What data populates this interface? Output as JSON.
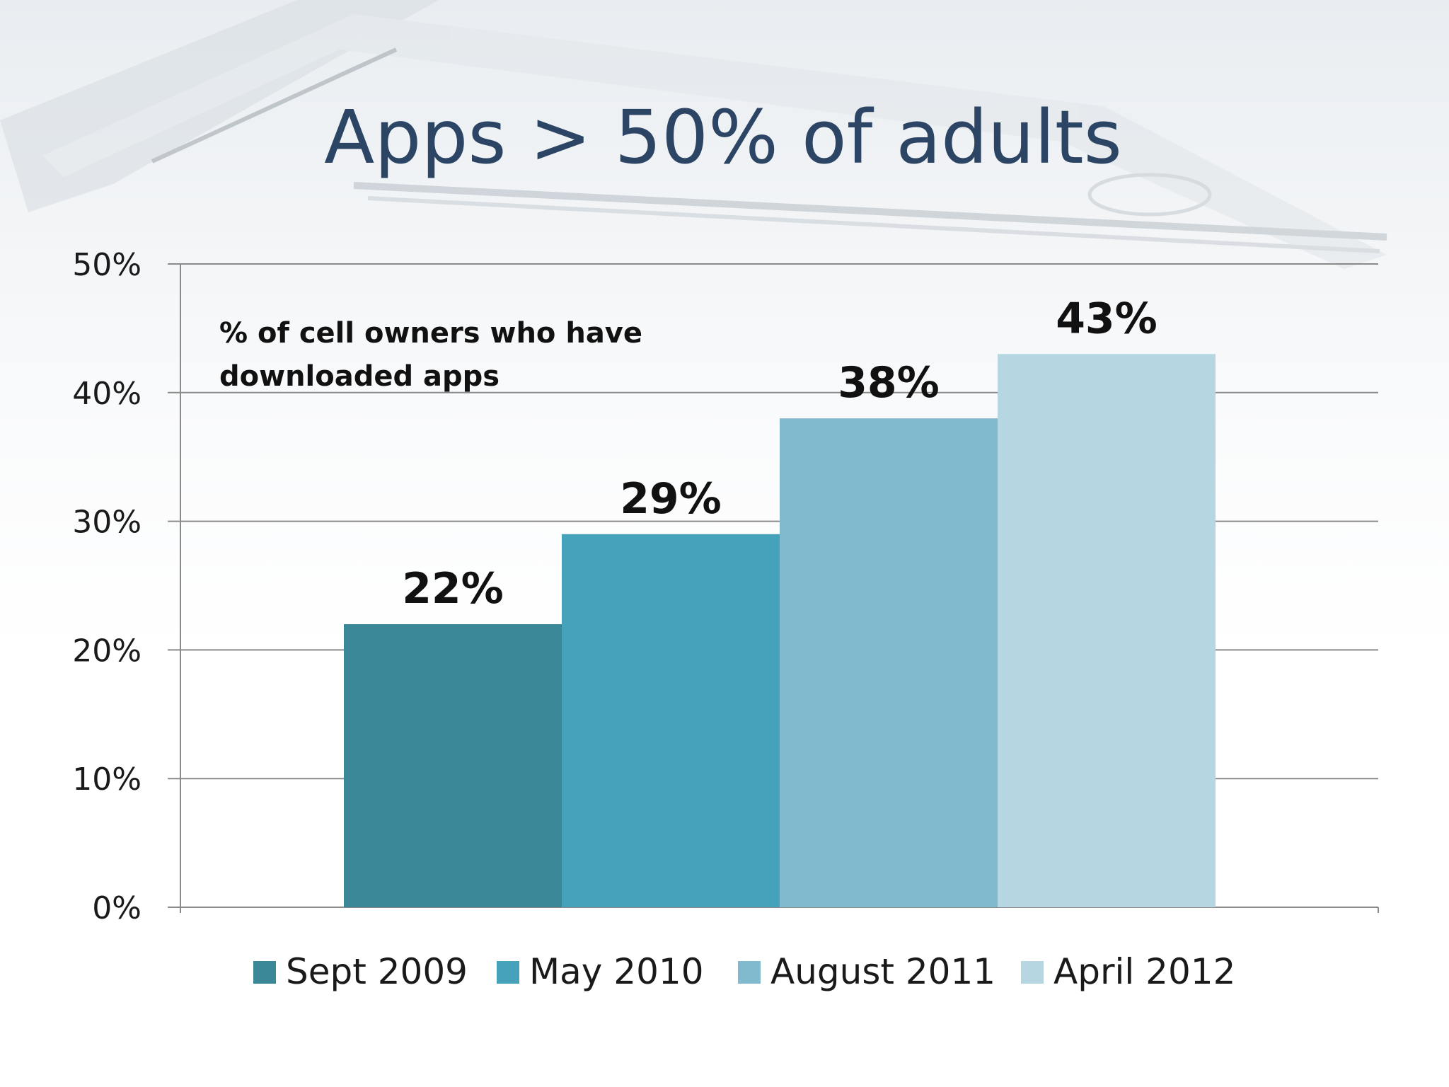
{
  "chart_data": {
    "type": "bar",
    "title": "Apps > 50% of adults",
    "annotation": [
      "% of cell owners who have",
      "downloaded apps"
    ],
    "ylim": [
      0,
      50
    ],
    "yticks": [
      "0%",
      "10%",
      "20%",
      "30%",
      "40%",
      "50%"
    ],
    "ytick_values": [
      0,
      10,
      20,
      30,
      40,
      50
    ],
    "grid": true,
    "legend_position": "bottom",
    "series": [
      {
        "name": "Sept 2009",
        "value": 22,
        "label": "22%",
        "color": "#3a8798"
      },
      {
        "name": "May 2010",
        "value": 29,
        "label": "29%",
        "color": "#46a1ba"
      },
      {
        "name": "August 2011",
        "value": 38,
        "label": "38%",
        "color": "#81b9ce"
      },
      {
        "name": "April 2012",
        "value": 43,
        "label": "43%",
        "color": "#b6d6e1"
      }
    ]
  }
}
